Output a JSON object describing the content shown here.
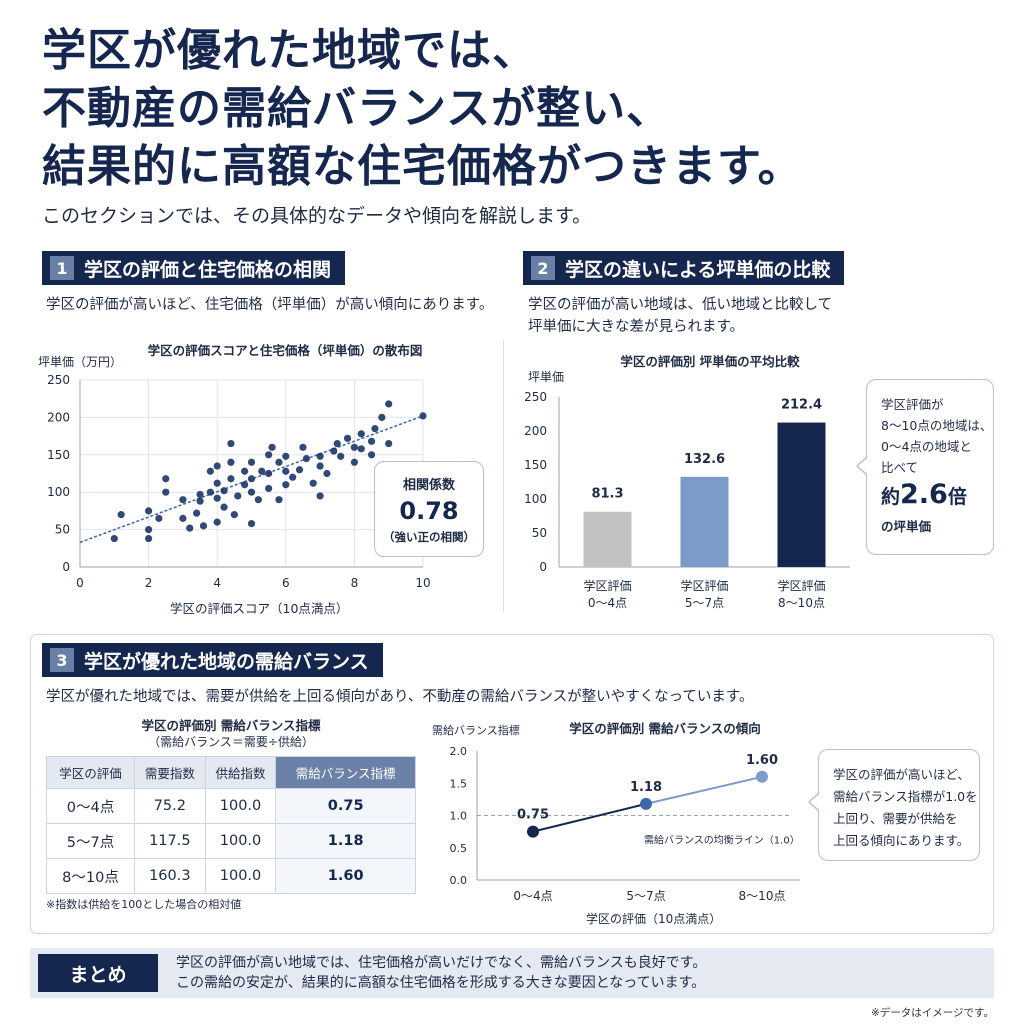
{
  "headline": {
    "line1": "学区が優れた地域では、",
    "line2": "不動産の需給バランスが整い、",
    "line3": "結果的に高額な住宅価格がつきます。"
  },
  "lead": "このセクションでは、その具体的なデータや傾向を解説します。",
  "section1": {
    "number": "1",
    "title": "学区の評価と住宅価格の相関",
    "desc": "学区の評価が高いほど、住宅価格（坪単価）が高い傾向にあります。",
    "callout": {
      "label": "相関係数",
      "value": "0.78",
      "note": "（強い正の相関）"
    }
  },
  "section2": {
    "number": "2",
    "title": "学区の違いによる坪単価の比較",
    "desc_line1": "学区の評価が高い地域は、低い地域と比較して",
    "desc_line2": "坪単価に大きな差が見られます。",
    "callout": {
      "line1": "学区評価が",
      "line2": "8〜10点の地域は、",
      "line3": "0〜4点の地域と",
      "line4": "比べて",
      "big_prefix": "約",
      "big_value": "2.6",
      "big_suffix": "倍",
      "line5": "の坪単価"
    }
  },
  "section3": {
    "number": "3",
    "title": "学区が優れた地域の需給バランス",
    "desc": "学区が優れた地域では、需要が供給を上回る傾向があり、不動産の需給バランスが整いやすくなっています。",
    "table_title": "学区の評価別 需給バランス指標",
    "table_subtitle": "（需給バランス＝需要÷供給）",
    "table_headers": [
      "学区の評価",
      "需要指数",
      "供給指数",
      "需給バランス指標"
    ],
    "table_rows": [
      [
        "0〜4点",
        "75.2",
        "100.0",
        "0.75"
      ],
      [
        "5〜7点",
        "117.5",
        "100.0",
        "1.18"
      ],
      [
        "8〜10点",
        "160.3",
        "100.0",
        "1.60"
      ]
    ],
    "table_note": "※指数は供給を100とした場合の相対値",
    "callout": {
      "line1": "学区の評価が高いほど、",
      "line2": "需給バランス指標が1.0を",
      "line3": "上回り、需要が供給を",
      "line4": "上回る傾向にあります。"
    }
  },
  "summary": {
    "label": "まとめ",
    "line1": "学区の評価が高い地域では、住宅価格が高いだけでなく、需給バランスも良好です。",
    "line2": "この需給の安定が、結果的に高額な住宅価格を形成する大きな要因となっています。"
  },
  "footnote": "※データはイメージです。",
  "colors": {
    "navy": "#15264f",
    "mid_blue": "#7b9cc8",
    "gray": "#c2c2c2",
    "point": "#1b3566",
    "line_light": "#7b9cc8"
  },
  "chart_data": [
    {
      "type": "scatter",
      "title": "学区の評価スコアと住宅価格（坪単価）の散布図",
      "xlabel": "学区の評価スコア（10点満点）",
      "ylabel": "坪単価（万円）",
      "xlim": [
        0,
        10
      ],
      "ylim": [
        0,
        250
      ],
      "xticks": [
        "0",
        "2",
        "4",
        "6",
        "8",
        "10"
      ],
      "yticks": [
        "0",
        "50",
        "100",
        "150",
        "200",
        "250"
      ],
      "trendline": {
        "x": [
          0,
          10
        ],
        "y": [
          33,
          202
        ]
      },
      "points": [
        [
          1.0,
          38
        ],
        [
          1.2,
          70
        ],
        [
          2.0,
          38
        ],
        [
          2.0,
          50
        ],
        [
          2.0,
          75
        ],
        [
          2.3,
          65
        ],
        [
          2.5,
          100
        ],
        [
          2.5,
          118
        ],
        [
          3.0,
          65
        ],
        [
          3.0,
          90
        ],
        [
          3.2,
          52
        ],
        [
          3.4,
          72
        ],
        [
          3.5,
          88
        ],
        [
          3.5,
          97
        ],
        [
          3.6,
          55
        ],
        [
          3.8,
          100
        ],
        [
          3.8,
          128
        ],
        [
          4.0,
          60
        ],
        [
          4.0,
          92
        ],
        [
          4.0,
          112
        ],
        [
          4.0,
          135
        ],
        [
          4.2,
          80
        ],
        [
          4.2,
          102
        ],
        [
          4.4,
          118
        ],
        [
          4.4,
          140
        ],
        [
          4.4,
          165
        ],
        [
          4.5,
          70
        ],
        [
          4.6,
          95
        ],
        [
          4.8,
          110
        ],
        [
          4.8,
          128
        ],
        [
          5.0,
          58
        ],
        [
          5.0,
          100
        ],
        [
          5.0,
          118
        ],
        [
          5.0,
          140
        ],
        [
          5.2,
          90
        ],
        [
          5.3,
          128
        ],
        [
          5.5,
          105
        ],
        [
          5.5,
          125
        ],
        [
          5.5,
          150
        ],
        [
          5.6,
          160
        ],
        [
          5.8,
          90
        ],
        [
          5.8,
          140
        ],
        [
          6.0,
          110
        ],
        [
          6.0,
          128
        ],
        [
          6.0,
          148
        ],
        [
          6.2,
          120
        ],
        [
          6.4,
          130
        ],
        [
          6.5,
          160
        ],
        [
          6.6,
          145
        ],
        [
          6.8,
          112
        ],
        [
          7.0,
          95
        ],
        [
          7.0,
          135
        ],
        [
          7.0,
          148
        ],
        [
          7.2,
          125
        ],
        [
          7.4,
          155
        ],
        [
          7.5,
          165
        ],
        [
          7.6,
          148
        ],
        [
          7.8,
          172
        ],
        [
          8.0,
          140
        ],
        [
          8.0,
          160
        ],
        [
          8.2,
          158
        ],
        [
          8.2,
          178
        ],
        [
          8.5,
          150
        ],
        [
          8.5,
          168
        ],
        [
          8.6,
          185
        ],
        [
          8.8,
          200
        ],
        [
          9.0,
          165
        ],
        [
          9.0,
          218
        ],
        [
          10.0,
          202
        ]
      ]
    },
    {
      "type": "bar",
      "title": "学区の評価別 坪単価の平均比較",
      "ylabel": "坪単価",
      "ylim": [
        0,
        250
      ],
      "yticks": [
        "0",
        "50",
        "100",
        "150",
        "200",
        "250"
      ],
      "categories": [
        [
          "学区評価",
          "0〜4点"
        ],
        [
          "学区評価",
          "5〜7点"
        ],
        [
          "学区評価",
          "8〜10点"
        ]
      ],
      "values": [
        81.3,
        132.6,
        212.4
      ],
      "labels": [
        "81.3",
        "132.6",
        "212.4"
      ],
      "bar_colors": [
        "#c2c2c2",
        "#7b9cc8",
        "#15264f"
      ]
    },
    {
      "type": "line",
      "title": "学区の評価別 需給バランスの傾向",
      "ylabel": "需給バランス指標",
      "xlabel": "学区の評価（10点満点）",
      "ylim": [
        0,
        2.0
      ],
      "yticks": [
        "0.0",
        "0.5",
        "1.0",
        "1.5",
        "2.0"
      ],
      "categories": [
        "0〜4点",
        "5〜7点",
        "8〜10点"
      ],
      "values": [
        0.75,
        1.18,
        1.6
      ],
      "labels": [
        "0.75",
        "1.18",
        "1.60"
      ],
      "reference": {
        "value": 1.0,
        "label": "需給バランスの均衡ライン（1.0）"
      }
    }
  ]
}
